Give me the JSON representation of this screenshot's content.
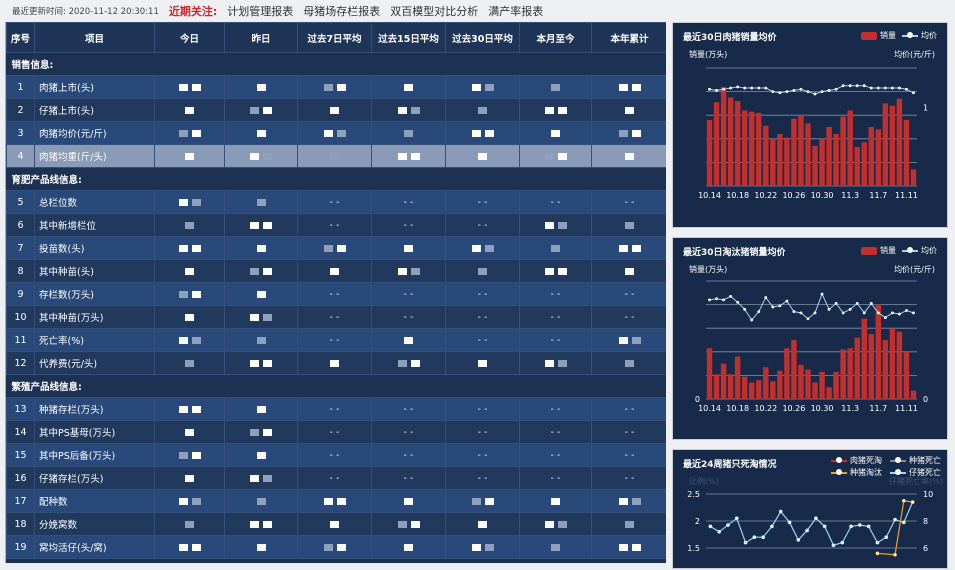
{
  "topbar": {
    "update_label": "最近更新时间:",
    "update_time": "2020-11-12 20:30:11",
    "focus_label": "近期关注:",
    "links": [
      "计划管理报表",
      "母猪场存栏报表",
      "双百模型对比分析",
      "满产率报表"
    ]
  },
  "table": {
    "headers": [
      "序号",
      "项目",
      "今日",
      "昨日",
      "过去7日平均",
      "过去15日平均",
      "过去30日平均",
      "本月至今",
      "本年累计"
    ],
    "sections": [
      {
        "title": "销售信息:",
        "rows": [
          {
            "no": "1",
            "item": "肉猪上市(头)",
            "cells": [
              "",
              "",
              "",
              "",
              "",
              "",
              ""
            ]
          },
          {
            "no": "2",
            "item": "仔猪上市(头)",
            "cells": [
              "",
              "",
              "",
              "",
              "",
              "",
              ""
            ]
          },
          {
            "no": "3",
            "item": "肉猪均价(元/斤)",
            "cells": [
              "",
              "",
              "",
              "",
              "",
              "",
              ""
            ]
          },
          {
            "no": "4",
            "item": "肉猪均重(斤/头)",
            "cells": [
              "",
              "",
              "",
              "",
              "",
              "",
              ""
            ]
          }
        ]
      },
      {
        "title": "育肥产品线信息:",
        "rows": [
          {
            "no": "5",
            "item": "总栏位数",
            "cells": [
              "",
              "",
              "- -",
              "- -",
              "- -",
              "- -",
              "- -"
            ]
          },
          {
            "no": "6",
            "item": "其中新增栏位",
            "cells": [
              "",
              "",
              "- -",
              "- -",
              "- -",
              "",
              ""
            ]
          },
          {
            "no": "7",
            "item": "投苗数(头)",
            "cells": [
              "",
              "",
              "",
              "",
              "",
              "",
              ""
            ]
          },
          {
            "no": "8",
            "item": "其中种苗(头)",
            "cells": [
              "",
              "",
              "",
              "",
              "",
              "",
              ""
            ]
          },
          {
            "no": "9",
            "item": "存栏数(万头)",
            "cells": [
              "",
              "",
              "- -",
              "- -",
              "- -",
              "- -",
              "- -"
            ]
          },
          {
            "no": "10",
            "item": "其中种苗(万头)",
            "cells": [
              "",
              "",
              "- -",
              "- -",
              "- -",
              "- -",
              "- -"
            ]
          },
          {
            "no": "11",
            "item": "死亡率(%)",
            "cells": [
              "",
              "",
              "- -",
              "",
              "- -",
              "- -",
              ""
            ]
          },
          {
            "no": "12",
            "item": "代养费(元/头)",
            "cells": [
              "",
              "",
              "",
              "",
              "",
              "",
              ""
            ]
          }
        ]
      },
      {
        "title": "繁殖产品线信息:",
        "rows": [
          {
            "no": "13",
            "item": "种猪存栏(万头)",
            "cells": [
              "",
              "",
              "- -",
              "- -",
              "- -",
              "- -",
              "- -"
            ]
          },
          {
            "no": "14",
            "item": "其中PS基母(万头)",
            "cells": [
              "",
              "",
              "- -",
              "- -",
              "- -",
              "- -",
              "- -"
            ]
          },
          {
            "no": "15",
            "item": "其中PS后备(万头)",
            "cells": [
              "",
              "",
              "- -",
              "- -",
              "- -",
              "- -",
              "- -"
            ]
          },
          {
            "no": "16",
            "item": "仔猪存栏(万头)",
            "cells": [
              "",
              "",
              "- -",
              "- -",
              "- -",
              "- -",
              "- -"
            ]
          },
          {
            "no": "17",
            "item": "配种数",
            "cells": [
              "",
              "",
              "",
              "",
              "",
              "",
              ""
            ]
          },
          {
            "no": "18",
            "item": "分娩窝数",
            "cells": [
              "",
              "",
              "",
              "",
              "",
              "",
              ""
            ]
          },
          {
            "no": "19",
            "item": "窝均活仔(头/窝)",
            "cells": [
              "",
              "",
              "",
              "",
              "",
              "",
              ""
            ]
          }
        ]
      }
    ]
  },
  "chart_data": [
    {
      "type": "bar",
      "title": "最近30日肉猪销量均价",
      "legend": [
        "销量",
        "均价"
      ],
      "ylabel": "销量(万头)",
      "y2label": "均价(元/斤)",
      "categories": [
        "10.14",
        "10.15",
        "10.16",
        "10.17",
        "10.18",
        "10.19",
        "10.20",
        "10.21",
        "10.22",
        "10.23",
        "10.24",
        "10.25",
        "10.26",
        "10.27",
        "10.28",
        "10.29",
        "10.30",
        "10.31",
        "11.1",
        "11.2",
        "11.3",
        "11.4",
        "11.5",
        "11.6",
        "11.7",
        "11.8",
        "11.9",
        "11.10",
        "11.11",
        "11.12"
      ],
      "xticks": [
        "10.14",
        "10.18",
        "10.22",
        "10.26",
        "10.30",
        "11.3",
        "11.7",
        "11.11"
      ],
      "y2ticks": [
        "1"
      ],
      "bars": [
        5.6,
        7.1,
        8.4,
        7.5,
        7.2,
        6.4,
        6.3,
        6.2,
        5.1,
        4.0,
        4.4,
        4.1,
        5.7,
        6.0,
        5.3,
        3.4,
        4.0,
        5.0,
        4.4,
        5.9,
        6.4,
        3.3,
        3.7,
        5.0,
        4.8,
        7.0,
        6.8,
        7.4,
        5.6,
        1.4
      ],
      "line": [
        8.2,
        8.1,
        8.2,
        8.3,
        8.4,
        8.3,
        8.3,
        8.3,
        8.3,
        8.0,
        7.9,
        8.0,
        8.1,
        8.2,
        8.0,
        7.8,
        8.0,
        8.1,
        8.2,
        8.5,
        8.5,
        8.5,
        8.5,
        8.3,
        8.3,
        8.3,
        8.3,
        8.3,
        8.2,
        7.9
      ],
      "ylim": [
        0,
        10
      ],
      "legend_position": "top-right"
    },
    {
      "type": "bar",
      "title": "最近30日淘汰猪销量均价",
      "legend": [
        "销量",
        "均价"
      ],
      "ylabel": "销量(万头)",
      "y2label": "均价(元/斤)",
      "categories": [
        "10.14",
        "10.15",
        "10.16",
        "10.17",
        "10.18",
        "10.19",
        "10.20",
        "10.21",
        "10.22",
        "10.23",
        "10.24",
        "10.25",
        "10.26",
        "10.27",
        "10.28",
        "10.29",
        "10.30",
        "10.31",
        "11.1",
        "11.2",
        "11.3",
        "11.4",
        "11.5",
        "11.6",
        "11.7",
        "11.8",
        "11.9",
        "11.10",
        "11.11",
        "11.12"
      ],
      "xticks": [
        "10.14",
        "10.18",
        "10.22",
        "10.26",
        "10.30",
        "11.3",
        "11.7",
        "11.11"
      ],
      "yticks": [
        "0"
      ],
      "y2ticks": [
        "0"
      ],
      "bars": [
        4.3,
        2.1,
        3.0,
        2.1,
        3.6,
        1.9,
        1.4,
        1.6,
        2.7,
        1.5,
        2.4,
        4.3,
        5.0,
        2.9,
        2.5,
        1.4,
        2.3,
        1.0,
        2.3,
        4.2,
        4.3,
        5.2,
        6.8,
        5.5,
        8.0,
        5.0,
        6.0,
        5.7,
        4.0,
        0.7
      ],
      "line": [
        8.4,
        8.5,
        8.4,
        8.7,
        8.2,
        7.6,
        6.7,
        7.4,
        8.6,
        7.8,
        7.9,
        8.3,
        7.4,
        7.3,
        6.8,
        7.3,
        8.9,
        7.6,
        8.1,
        7.3,
        7.6,
        8.1,
        7.3,
        8.1,
        7.3,
        6.9,
        7.3,
        7.2,
        7.5,
        7.3
      ],
      "ylim": [
        0,
        10
      ],
      "legend_position": "top-right"
    },
    {
      "type": "line",
      "title": "最近24周猪只死淘情况",
      "legend": [
        "肉猪死淘",
        "种猪死亡",
        "种猪淘汰",
        "仔猪死亡"
      ],
      "ylabel": "比例(%)",
      "y2label": "仔猪死亡率(%)",
      "yticks": [
        "2.5",
        "2",
        "1.5"
      ],
      "y2ticks": [
        "10",
        "8",
        "6"
      ],
      "ylim": [
        1.5,
        2.5
      ],
      "y2lim": [
        6,
        10
      ],
      "series": [
        {
          "name": "仔猪死亡",
          "axis": "right",
          "values": [
            7.6,
            7.2,
            7.7,
            8.2,
            6.4,
            6.8,
            6.8,
            7.6,
            8.7,
            7.9,
            6.6,
            7.3,
            8.2,
            7.6,
            6.2,
            6.4,
            7.6,
            7.7,
            7.6,
            6.4,
            6.8,
            8.1,
            7.9,
            9.4
          ]
        },
        {
          "name": "种猪淘汰",
          "axis": "right",
          "values": [
            null,
            null,
            null,
            null,
            null,
            null,
            null,
            null,
            null,
            null,
            null,
            null,
            null,
            null,
            null,
            null,
            null,
            null,
            null,
            5.6,
            null,
            5.5,
            9.5,
            9.4
          ]
        }
      ],
      "colors": {
        "肉猪死淘": "#c1302d",
        "种猪死亡": "#ffffff",
        "种猪淘汰": "#f0a020",
        "仔猪死亡": "#9fd3f0"
      },
      "legend_position": "top-right"
    }
  ]
}
